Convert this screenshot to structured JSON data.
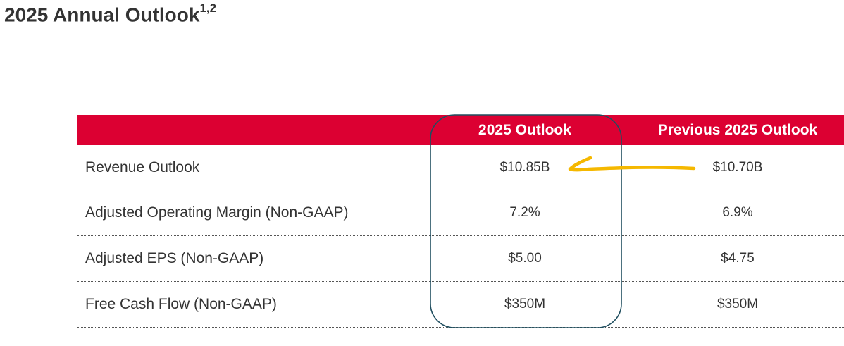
{
  "title": {
    "text": "2025 Annual Outlook",
    "superscript": "1,2"
  },
  "table": {
    "headers": {
      "metric": "",
      "current": "2025 Outlook",
      "previous": "Previous 2025 Outlook"
    },
    "rows": [
      {
        "metric": "Revenue Outlook",
        "current": "$10.85B",
        "previous": "$10.70B"
      },
      {
        "metric": "Adjusted Operating Margin (Non-GAAP)",
        "current": "7.2%",
        "previous": "6.9%"
      },
      {
        "metric": "Adjusted EPS (Non-GAAP)",
        "current": "$5.00",
        "previous": "$4.75"
      },
      {
        "metric": "Free Cash Flow (Non-GAAP)",
        "current": "$350M",
        "previous": "$350M"
      }
    ]
  },
  "colors": {
    "header_background": "#dc0032",
    "header_text": "#ffffff",
    "body_text": "#333333",
    "highlight_box_stroke": "#1f4e5f",
    "arrow_stroke": "#f5b800"
  }
}
